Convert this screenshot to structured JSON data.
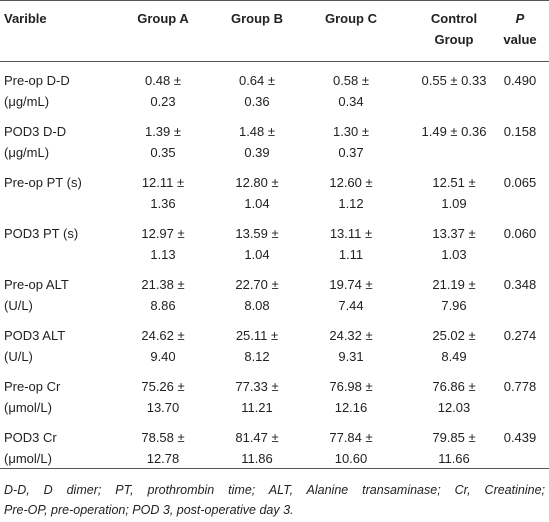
{
  "table": {
    "header": [
      [
        "Varible"
      ],
      [
        "Group A"
      ],
      [
        "Group B"
      ],
      [
        "Group C"
      ],
      [
        "Control",
        "Group"
      ],
      [
        "P",
        "value"
      ]
    ],
    "rows": [
      [
        [
          "Pre-op D-D",
          "(μg/mL)"
        ],
        [
          "0.48 ±",
          "0.23"
        ],
        [
          "0.64 ±",
          "0.36"
        ],
        [
          "0.58 ±",
          "0.34"
        ],
        [
          "0.55 ± 0.33"
        ],
        [
          "0.490"
        ]
      ],
      [
        [
          "POD3 D-D",
          "(μg/mL)"
        ],
        [
          "1.39 ±",
          "0.35"
        ],
        [
          "1.48 ±",
          "0.39"
        ],
        [
          "1.30 ±",
          "0.37"
        ],
        [
          "1.49 ± 0.36"
        ],
        [
          "0.158"
        ]
      ],
      [
        [
          "Pre-op PT (s)"
        ],
        [
          "12.11 ±",
          "1.36"
        ],
        [
          "12.80 ±",
          "1.04"
        ],
        [
          "12.60 ±",
          "1.12"
        ],
        [
          "12.51 ±",
          "1.09"
        ],
        [
          "0.065"
        ]
      ],
      [
        [
          "POD3 PT (s)"
        ],
        [
          "12.97 ±",
          "1.13"
        ],
        [
          "13.59 ±",
          "1.04"
        ],
        [
          "13.11 ±",
          "1.11"
        ],
        [
          "13.37 ±",
          "1.03"
        ],
        [
          "0.060"
        ]
      ],
      [
        [
          "Pre-op ALT",
          "(U/L)"
        ],
        [
          "21.38 ±",
          "8.86"
        ],
        [
          "22.70 ±",
          "8.08"
        ],
        [
          "19.74 ±",
          "7.44"
        ],
        [
          "21.19 ±",
          "7.96"
        ],
        [
          "0.348"
        ]
      ],
      [
        [
          "POD3 ALT",
          "(U/L)"
        ],
        [
          "24.62 ±",
          "9.40"
        ],
        [
          "25.11 ±",
          "8.12"
        ],
        [
          "24.32 ±",
          "9.31"
        ],
        [
          "25.02 ±",
          "8.49"
        ],
        [
          "0.274"
        ]
      ],
      [
        [
          "Pre-op Cr",
          "(μmol/L)"
        ],
        [
          "75.26 ±",
          "13.70"
        ],
        [
          "77.33 ±",
          "11.21"
        ],
        [
          "76.98 ±",
          "12.16"
        ],
        [
          "76.86 ±",
          "12.03"
        ],
        [
          "0.778"
        ]
      ],
      [
        [
          "POD3 Cr",
          "(μmol/L)"
        ],
        [
          "78.58 ±",
          "12.78"
        ],
        [
          "81.47 ±",
          "11.86"
        ],
        [
          "77.84 ±",
          "10.60"
        ],
        [
          "79.85 ±",
          "11.66"
        ],
        [
          "0.439"
        ]
      ]
    ]
  },
  "footnote": [
    "D-D, D dimer; PT, prothrombin time; ALT, Alanine transaminase; Cr, Creatinine;",
    "Pre-OP, pre-operation; POD 3, post-operative day 3."
  ]
}
